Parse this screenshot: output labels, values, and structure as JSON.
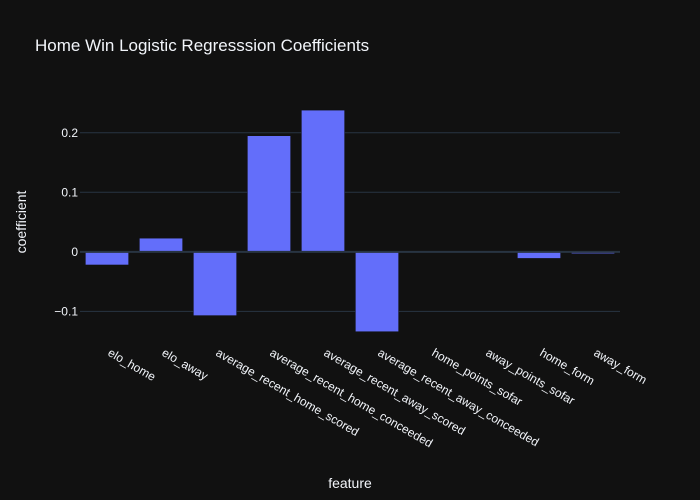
{
  "chart_data": {
    "type": "bar",
    "title": "Home Win Logistic Regresssion Coefficients",
    "xlabel": "feature",
    "ylabel": "coefficient",
    "categories": [
      "elo_home",
      "elo_away",
      "average_recent_home_scored",
      "average_recent_home_conceeded",
      "average_recent_away_scored",
      "average_recent_away_conceeded",
      "home_points_sofar",
      "away_points_sofar",
      "home_form",
      "away_form"
    ],
    "values": [
      -0.022,
      0.023,
      -0.107,
      0.195,
      0.238,
      -0.134,
      -0.001,
      -0.001,
      -0.011,
      -0.003
    ],
    "ylim": [
      -0.148,
      0.255
    ],
    "yticks": [
      -0.1,
      0,
      0.1,
      0.2
    ],
    "ytick_labels": [
      "−0.1",
      "0",
      "0.1",
      "0.2"
    ],
    "grid": true,
    "colors": {
      "background": "#111111",
      "bar": "#636efa",
      "grid": "#283442",
      "zeroline": "#283442",
      "text": "#f2f5fa"
    }
  }
}
